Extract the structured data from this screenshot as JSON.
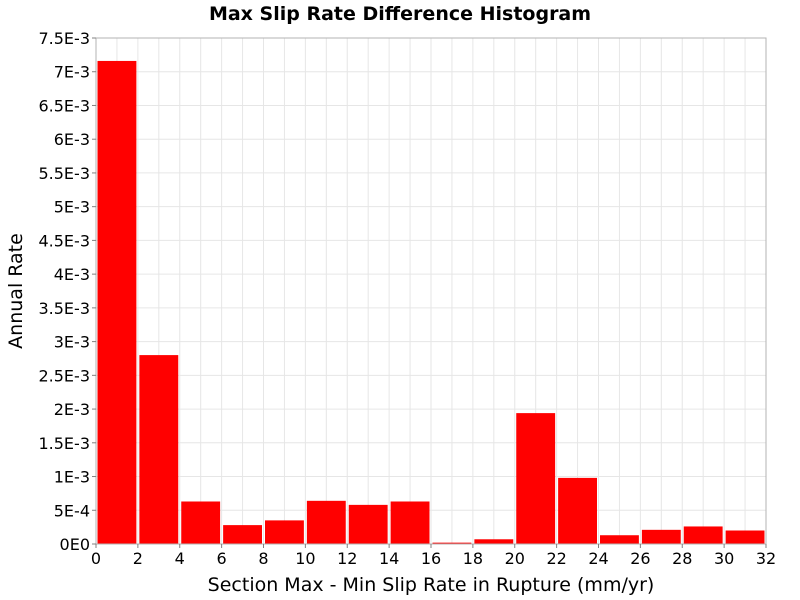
{
  "chart_data": {
    "type": "bar",
    "title": "Max Slip Rate Difference Histogram",
    "xlabel": "Section Max - Min Slip Rate in Rupture (mm/yr)",
    "ylabel": "Annual Rate",
    "xlim": [
      0,
      32
    ],
    "ylim": [
      0,
      0.0075
    ],
    "bin_width": 2,
    "x": [
      1,
      3,
      5,
      7,
      9,
      11,
      13,
      15,
      17,
      19,
      21,
      23,
      25,
      27,
      29,
      31
    ],
    "values": [
      0.00716,
      0.0028,
      0.00063,
      0.00028,
      0.00035,
      0.00064,
      0.00058,
      0.00063,
      2e-05,
      7e-05,
      0.00194,
      0.00098,
      0.00013,
      0.00021,
      0.00026,
      0.0002
    ],
    "x_ticks": [
      0,
      2,
      4,
      6,
      8,
      10,
      12,
      14,
      16,
      18,
      20,
      22,
      24,
      26,
      28,
      30,
      32
    ],
    "x_tick_labels": [
      "0",
      "2",
      "4",
      "6",
      "8",
      "10",
      "12",
      "14",
      "16",
      "18",
      "20",
      "22",
      "24",
      "26",
      "28",
      "30",
      "32"
    ],
    "y_ticks": [
      0,
      0.0005,
      0.001,
      0.0015,
      0.002,
      0.0025,
      0.003,
      0.0035,
      0.004,
      0.0045,
      0.005,
      0.0055,
      0.006,
      0.0065,
      0.007,
      0.0075
    ],
    "y_tick_labels": [
      "0E0",
      "5E-4",
      "1E-3",
      "1.5E-3",
      "2E-3",
      "2.5E-3",
      "3E-3",
      "3.5E-3",
      "4E-3",
      "4.5E-3",
      "5E-3",
      "5.5E-3",
      "6E-3",
      "6.5E-3",
      "7E-3",
      "7.5E-3"
    ],
    "grid": true,
    "bar_color": "#ff0000",
    "grid_color": "#e6e6e6"
  }
}
